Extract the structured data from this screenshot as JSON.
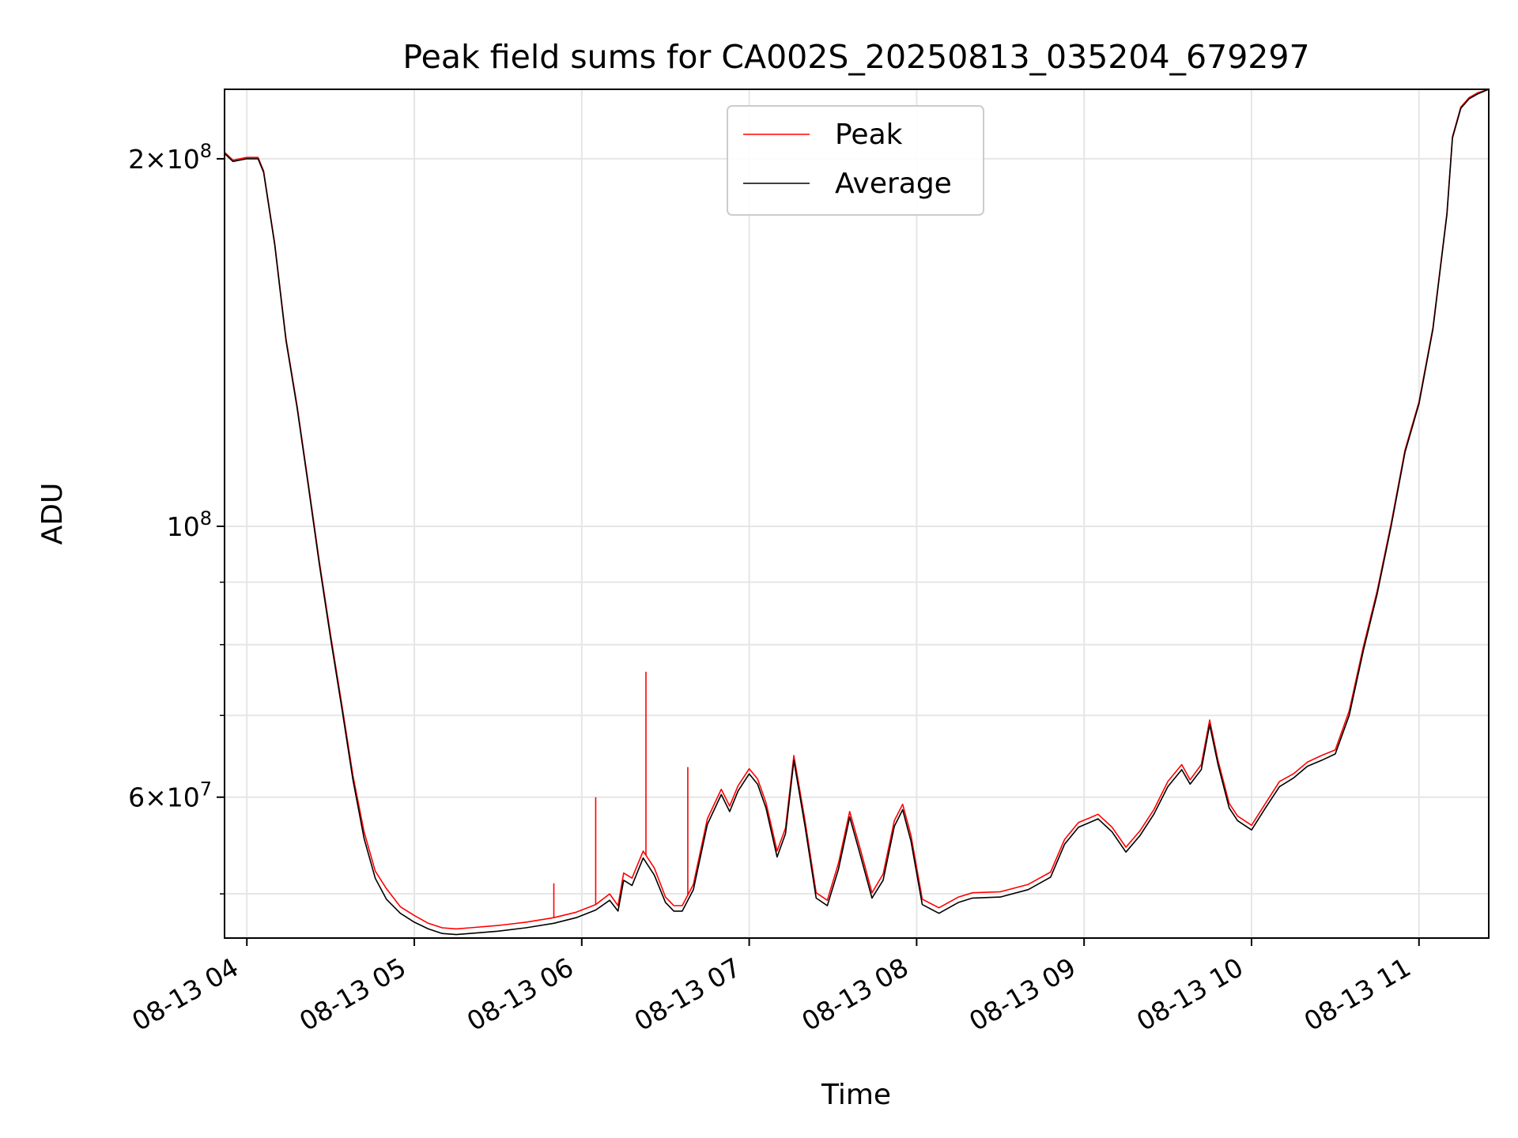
{
  "chart_data": {
    "type": "line",
    "title": "Peak field sums for CA002S_20250813_035204_679297",
    "xlabel": "Time",
    "ylabel": "ADU",
    "x_type": "time",
    "xlim": [
      "2025-08-13 03:52",
      "2025-08-13 11:25"
    ],
    "ylim": [
      46000000,
      228000000
    ],
    "y_scale": "log",
    "grid": true,
    "legend_position": "upper-center",
    "x_ticks": [
      {
        "value": "2025-08-13 04:00",
        "label": "08-13 04"
      },
      {
        "value": "2025-08-13 05:00",
        "label": "08-13 05"
      },
      {
        "value": "2025-08-13 06:00",
        "label": "08-13 06"
      },
      {
        "value": "2025-08-13 07:00",
        "label": "08-13 07"
      },
      {
        "value": "2025-08-13 08:00",
        "label": "08-13 08"
      },
      {
        "value": "2025-08-13 09:00",
        "label": "08-13 09"
      },
      {
        "value": "2025-08-13 10:00",
        "label": "08-13 10"
      },
      {
        "value": "2025-08-13 11:00",
        "label": "08-13 11"
      }
    ],
    "y_ticks_major": [
      {
        "value": 60000000,
        "mant": "6",
        "exp": "7"
      },
      {
        "value": 100000000,
        "mant": "",
        "exp": "8"
      },
      {
        "value": 200000000,
        "mant": "2",
        "exp": "8"
      }
    ],
    "y_ticks_minor": [
      50000000,
      70000000,
      80000000,
      90000000
    ],
    "x": [
      "2025-08-13 03:52",
      "2025-08-13 03:55",
      "2025-08-13 04:00",
      "2025-08-13 04:04",
      "2025-08-13 04:06",
      "2025-08-13 04:10",
      "2025-08-13 04:14",
      "2025-08-13 04:18",
      "2025-08-13 04:22",
      "2025-08-13 04:26",
      "2025-08-13 04:30",
      "2025-08-13 04:34",
      "2025-08-13 04:38",
      "2025-08-13 04:42",
      "2025-08-13 04:46",
      "2025-08-13 04:50",
      "2025-08-13 04:55",
      "2025-08-13 05:00",
      "2025-08-13 05:05",
      "2025-08-13 05:10",
      "2025-08-13 05:15",
      "2025-08-13 05:20",
      "2025-08-13 05:30",
      "2025-08-13 05:40",
      "2025-08-13 05:50",
      "2025-08-13 05:58",
      "2025-08-13 06:05",
      "2025-08-13 06:10",
      "2025-08-13 06:13",
      "2025-08-13 06:15",
      "2025-08-13 06:18",
      "2025-08-13 06:22",
      "2025-08-13 06:26",
      "2025-08-13 06:30",
      "2025-08-13 06:33",
      "2025-08-13 06:36",
      "2025-08-13 06:40",
      "2025-08-13 06:45",
      "2025-08-13 06:50",
      "2025-08-13 06:53",
      "2025-08-13 06:56",
      "2025-08-13 07:00",
      "2025-08-13 07:03",
      "2025-08-13 07:06",
      "2025-08-13 07:10",
      "2025-08-13 07:13",
      "2025-08-13 07:16",
      "2025-08-13 07:20",
      "2025-08-13 07:24",
      "2025-08-13 07:28",
      "2025-08-13 07:32",
      "2025-08-13 07:36",
      "2025-08-13 07:40",
      "2025-08-13 07:44",
      "2025-08-13 07:48",
      "2025-08-13 07:52",
      "2025-08-13 07:55",
      "2025-08-13 07:58",
      "2025-08-13 08:02",
      "2025-08-13 08:08",
      "2025-08-13 08:15",
      "2025-08-13 08:20",
      "2025-08-13 08:30",
      "2025-08-13 08:40",
      "2025-08-13 08:48",
      "2025-08-13 08:53",
      "2025-08-13 08:58",
      "2025-08-13 09:02",
      "2025-08-13 09:05",
      "2025-08-13 09:10",
      "2025-08-13 09:15",
      "2025-08-13 09:20",
      "2025-08-13 09:25",
      "2025-08-13 09:30",
      "2025-08-13 09:35",
      "2025-08-13 09:38",
      "2025-08-13 09:42",
      "2025-08-13 09:45",
      "2025-08-13 09:48",
      "2025-08-13 09:52",
      "2025-08-13 09:55",
      "2025-08-13 10:00",
      "2025-08-13 10:05",
      "2025-08-13 10:10",
      "2025-08-13 10:15",
      "2025-08-13 10:20",
      "2025-08-13 10:25",
      "2025-08-13 10:30",
      "2025-08-13 10:35",
      "2025-08-13 10:40",
      "2025-08-13 10:45",
      "2025-08-13 10:50",
      "2025-08-13 10:55",
      "2025-08-13 11:00",
      "2025-08-13 11:05",
      "2025-08-13 11:10",
      "2025-08-13 11:12",
      "2025-08-13 11:15",
      "2025-08-13 11:18",
      "2025-08-13 11:21",
      "2025-08-13 11:25"
    ],
    "series": [
      {
        "name": "Average",
        "color": "#000000",
        "values": [
          202000000,
          199000000,
          200000000,
          200000000,
          195000000,
          170000000,
          142000000,
          125000000,
          108000000,
          93000000,
          81000000,
          71000000,
          62000000,
          55500000,
          51500000,
          49500000,
          48200000,
          47400000,
          46800000,
          46400000,
          46300000,
          46400000,
          46600000,
          46900000,
          47300000,
          47800000,
          48500000,
          49400000,
          48400000,
          51300000,
          50800000,
          53500000,
          51800000,
          49200000,
          48400000,
          48400000,
          50400000,
          57000000,
          60300000,
          58400000,
          60700000,
          62700000,
          61500000,
          58800000,
          53600000,
          56000000,
          64300000,
          56800000,
          49600000,
          48900000,
          52400000,
          57800000,
          53600000,
          49600000,
          51300000,
          56800000,
          58600000,
          55200000,
          49000000,
          48200000,
          49200000,
          49600000,
          49700000,
          50400000,
          51600000,
          54900000,
          56700000,
          57200000,
          57600000,
          56200000,
          54100000,
          55800000,
          58100000,
          61200000,
          63200000,
          61500000,
          63200000,
          68800000,
          63800000,
          58800000,
          57400000,
          56400000,
          58800000,
          61200000,
          62200000,
          63600000,
          64300000,
          65100000,
          70000000,
          79000000,
          88000000,
          100000000,
          115000000,
          126000000,
          145000000,
          180000000,
          208000000,
          220000000,
          224000000,
          226000000,
          228000000
        ]
      },
      {
        "name": "Peak",
        "color": "#ff0000",
        "values": [
          202500000,
          199500000,
          200500000,
          200500000,
          195500000,
          170500000,
          142500000,
          125500000,
          108500000,
          93500000,
          81500000,
          71500000,
          62500000,
          56200000,
          52200000,
          50500000,
          48800000,
          48000000,
          47300000,
          46900000,
          46800000,
          46900000,
          47100000,
          47400000,
          47800000,
          48300000,
          49000000,
          50000000,
          48900000,
          52000000,
          51500000,
          54200000,
          52500000,
          49700000,
          48900000,
          48900000,
          50900000,
          57600000,
          60900000,
          59000000,
          61300000,
          63300000,
          62100000,
          59400000,
          54200000,
          56600000,
          64900000,
          57400000,
          50100000,
          49400000,
          53000000,
          58400000,
          54200000,
          50100000,
          51900000,
          57400000,
          59200000,
          55800000,
          49500000,
          48700000,
          49700000,
          50100000,
          50200000,
          50900000,
          52100000,
          55400000,
          57200000,
          57700000,
          58100000,
          56700000,
          54600000,
          56300000,
          58600000,
          61800000,
          63800000,
          62000000,
          63800000,
          69400000,
          64300000,
          59300000,
          57900000,
          56900000,
          59300000,
          61800000,
          62700000,
          64100000,
          64900000,
          65600000,
          70600000,
          79600000,
          88500000,
          100500000,
          115500000,
          126500000,
          145500000,
          180500000,
          208500000,
          220500000,
          224500000,
          226500000,
          228000000
        ]
      }
    ],
    "spikes": [
      {
        "x": "2025-08-13 05:50",
        "y": 51000000
      },
      {
        "x": "2025-08-13 06:05",
        "y": 60000000
      },
      {
        "x": "2025-08-13 06:23",
        "y": 76000000
      },
      {
        "x": "2025-08-13 06:38",
        "y": 63500000
      }
    ]
  }
}
